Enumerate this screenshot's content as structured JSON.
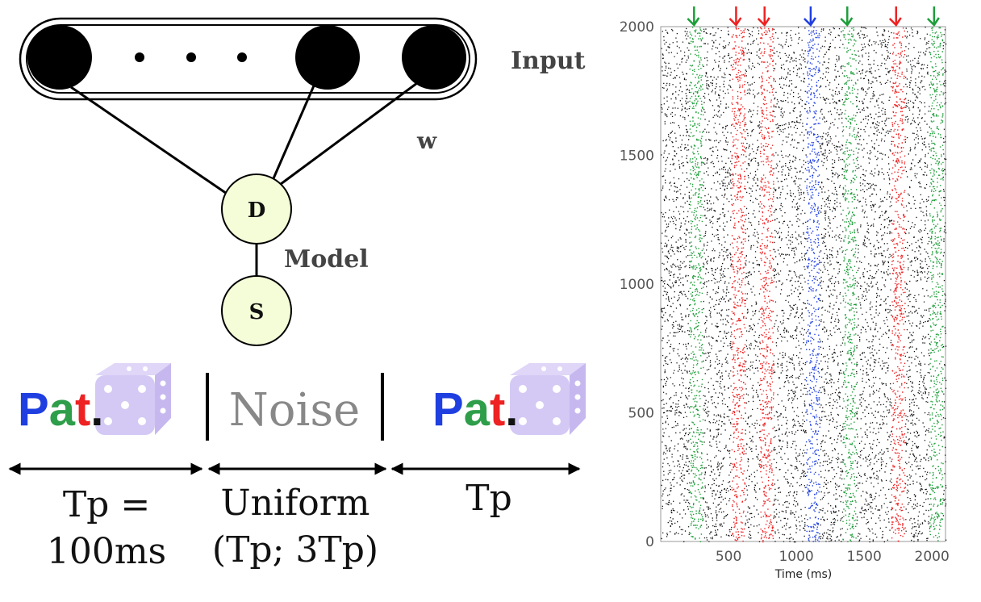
{
  "network": {
    "input_label": "Input",
    "weight_label": "w",
    "model_label": "Model",
    "node_d": "D",
    "node_s": "S"
  },
  "sequence": {
    "pattern_parts": [
      "P",
      "a",
      "t",
      "."
    ],
    "pattern_colors": [
      "#1f3fe0",
      "#2e9e4a",
      "#ee2222",
      "#111111"
    ],
    "noise_label": "Noise",
    "dice_color": "#d4c9f5",
    "interval_1_line1": "Tp =",
    "interval_1_line2": "100ms",
    "interval_2_line1": "Uniform",
    "interval_2_line2": "(Tp; 3Tp)",
    "interval_3_line1": "Tp"
  },
  "chart_data": {
    "type": "scatter",
    "xlabel": "Time (ms)",
    "ylabel": "",
    "xlim": [
      0,
      2100
    ],
    "ylim": [
      0,
      2000
    ],
    "xticks": [
      500,
      1000,
      1500,
      2000
    ],
    "yticks": [
      0,
      500,
      1000,
      1500,
      2000
    ],
    "background_color": "#111111",
    "pattern_windows": [
      {
        "start": 210,
        "end": 310,
        "color": "#1e9e3a"
      },
      {
        "start": 520,
        "end": 620,
        "color": "#ee2222"
      },
      {
        "start": 730,
        "end": 830,
        "color": "#ee2222"
      },
      {
        "start": 1070,
        "end": 1170,
        "color": "#1f3fe0"
      },
      {
        "start": 1340,
        "end": 1440,
        "color": "#1e9e3a"
      },
      {
        "start": 1700,
        "end": 1800,
        "color": "#ee2222"
      },
      {
        "start": 1980,
        "end": 2080,
        "color": "#1e9e3a"
      }
    ]
  }
}
